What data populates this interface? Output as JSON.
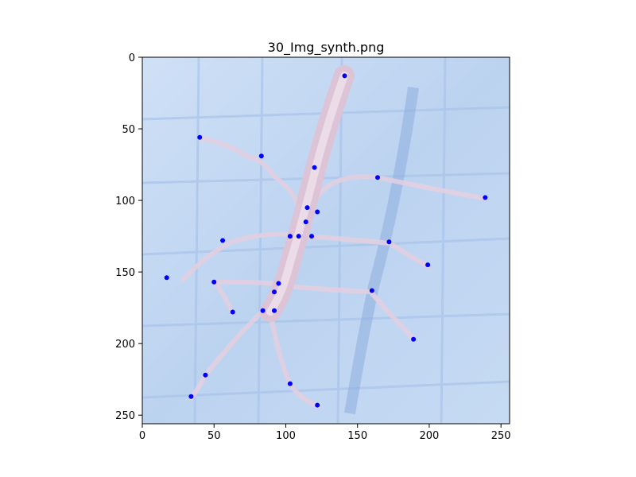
{
  "chart_data": {
    "type": "scatter",
    "title": "30_Img_synth.png",
    "xlabel": "",
    "ylabel": "",
    "xlim": [
      0,
      256
    ],
    "ylim": [
      256,
      0
    ],
    "y_inverted": true,
    "grid": false,
    "legend": "none",
    "xticks": [
      0,
      50,
      100,
      150,
      200,
      250
    ],
    "yticks": [
      0,
      50,
      100,
      150,
      200,
      250
    ],
    "background": "image",
    "point_color": "#0000ff",
    "series": [
      {
        "points": [
          {
            "x": 141,
            "y": 13
          },
          {
            "x": 40,
            "y": 56
          },
          {
            "x": 83,
            "y": 69
          },
          {
            "x": 120,
            "y": 77
          },
          {
            "x": 164,
            "y": 84
          },
          {
            "x": 239,
            "y": 98
          },
          {
            "x": 115,
            "y": 105
          },
          {
            "x": 122,
            "y": 108
          },
          {
            "x": 114,
            "y": 115
          },
          {
            "x": 103,
            "y": 125
          },
          {
            "x": 109,
            "y": 125
          },
          {
            "x": 118,
            "y": 125
          },
          {
            "x": 56,
            "y": 128
          },
          {
            "x": 172,
            "y": 129
          },
          {
            "x": 199,
            "y": 145
          },
          {
            "x": 17,
            "y": 154
          },
          {
            "x": 50,
            "y": 157
          },
          {
            "x": 95,
            "y": 158
          },
          {
            "x": 160,
            "y": 163
          },
          {
            "x": 92,
            "y": 164
          },
          {
            "x": 84,
            "y": 177
          },
          {
            "x": 92,
            "y": 177
          },
          {
            "x": 63,
            "y": 178
          },
          {
            "x": 189,
            "y": 197
          },
          {
            "x": 44,
            "y": 222
          },
          {
            "x": 103,
            "y": 228
          },
          {
            "x": 34,
            "y": 237
          },
          {
            "x": 122,
            "y": 243
          }
        ]
      }
    ]
  }
}
